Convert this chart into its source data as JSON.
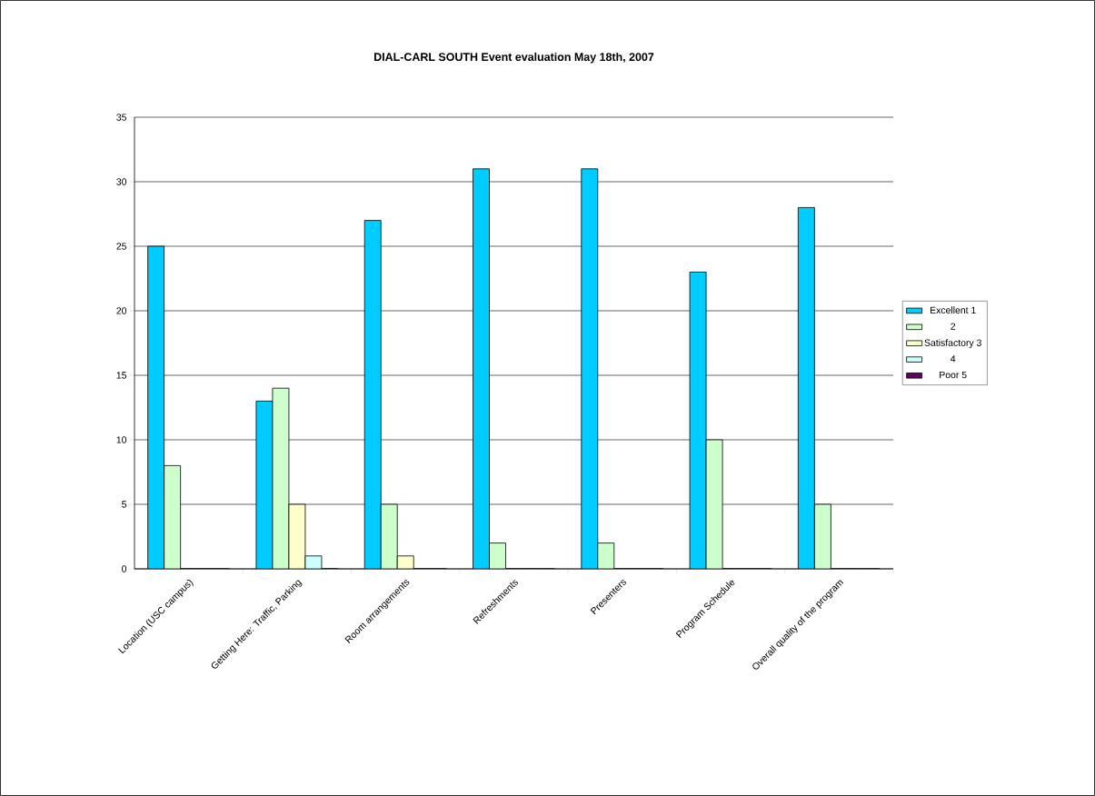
{
  "chart_data": {
    "type": "bar",
    "title": "DIAL-CARL SOUTH Event evaluation May 18th, 2007",
    "categories": [
      "Location (USC campus)",
      "Getting Here: Traffic, Parking",
      "Room arrangements",
      "Refreshments",
      "Presenters",
      "Program Schedule",
      "Overall quality of the program"
    ],
    "series": [
      {
        "name": "Excellent 1",
        "color": "#00ccff",
        "values": [
          25,
          13,
          27,
          31,
          31,
          23,
          28
        ]
      },
      {
        "name": "2",
        "color": "#ccffcc",
        "values": [
          8,
          14,
          5,
          2,
          2,
          10,
          5
        ]
      },
      {
        "name": "Satisfactory 3",
        "color": "#ffffcc",
        "values": [
          0,
          5,
          1,
          0,
          0,
          0,
          0
        ]
      },
      {
        "name": "4",
        "color": "#ccffff",
        "values": [
          0,
          1,
          0,
          0,
          0,
          0,
          0
        ]
      },
      {
        "name": "Poor 5",
        "color": "#660066",
        "values": [
          0,
          0,
          0,
          0,
          0,
          0,
          0
        ]
      }
    ],
    "ylim": [
      0,
      35
    ],
    "yticks": [
      0,
      5,
      10,
      15,
      20,
      25,
      30,
      35
    ],
    "grid": "y",
    "legend": "right"
  }
}
